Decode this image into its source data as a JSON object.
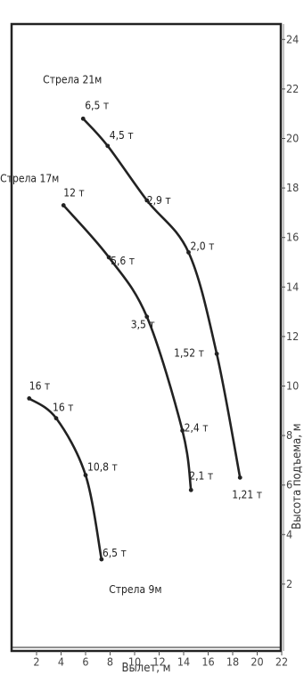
{
  "chart_data": {
    "type": "line",
    "xlabel": "Вылет, м",
    "ylabel": "Высота подъема, м",
    "xlim": [
      0,
      22
    ],
    "ylim": [
      -1,
      24
    ],
    "x_ticks": [
      2,
      4,
      6,
      8,
      10,
      12,
      14,
      16,
      18,
      20,
      22
    ],
    "y_ticks": [
      2,
      4,
      6,
      8,
      10,
      12,
      14,
      16,
      18,
      20,
      22,
      24
    ],
    "grid": false,
    "series": [
      {
        "name": "Стрела 21м",
        "points": [
          {
            "x": 5.8,
            "y": 20.8,
            "label": "6,5 т"
          },
          {
            "x": 7.8,
            "y": 19.7,
            "label": "4,5 т"
          },
          {
            "x": 11.0,
            "y": 17.5,
            "label": "2,9 т"
          },
          {
            "x": 14.4,
            "y": 15.4,
            "label": "2,0 т"
          },
          {
            "x": 16.7,
            "y": 11.3,
            "label": "1,52 т"
          },
          {
            "x": 18.6,
            "y": 6.3,
            "label": "1,21 т"
          }
        ]
      },
      {
        "name": "Стрела 17м",
        "points": [
          {
            "x": 4.2,
            "y": 17.3,
            "label": "12 т"
          },
          {
            "x": 7.9,
            "y": 15.2,
            "label": "5,6 т"
          },
          {
            "x": 11.0,
            "y": 12.8,
            "label": "3,5 т"
          },
          {
            "x": 13.9,
            "y": 8.2,
            "label": "2,4 т"
          },
          {
            "x": 14.6,
            "y": 5.8,
            "label": "2,1 т"
          }
        ]
      },
      {
        "name": "Стрела 9м",
        "points": [
          {
            "x": 1.4,
            "y": 9.5,
            "label": "16 т"
          },
          {
            "x": 3.6,
            "y": 8.7,
            "label": "16 т"
          },
          {
            "x": 6.0,
            "y": 6.4,
            "label": "10,8 т"
          },
          {
            "x": 7.3,
            "y": 3.0,
            "label": "6,5 т"
          }
        ]
      }
    ]
  }
}
